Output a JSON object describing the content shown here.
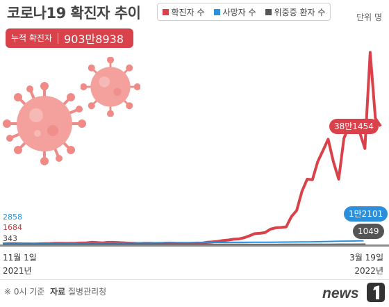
{
  "header": {
    "title": "코로나19 확진자 추이",
    "unit": "단위 명"
  },
  "legend": [
    {
      "label": "확진자 수",
      "color": "#d9424b"
    },
    {
      "label": "사망자 수",
      "color": "#2c8fdb"
    },
    {
      "label": "위중증 환자 수",
      "color": "#555555"
    }
  ],
  "total": {
    "label": "누적 확진자",
    "value": "903만8938"
  },
  "annotations": {
    "cases_end": "38만1454",
    "deaths_end": "1만2101",
    "critical_end": "1049",
    "deaths_start": "2858",
    "cases_start": "1684",
    "critical_start": "343"
  },
  "xaxis": {
    "start_day": "11월 1일",
    "start_year": "2021년",
    "end_day": "3월 19일",
    "end_year": "2022년"
  },
  "footer": {
    "note": "※ 0시 기준",
    "source_label": "자료",
    "source": "질병관리청",
    "logo": "news1"
  },
  "chart_data": {
    "type": "line",
    "x_start": "2021-11-01",
    "x_end": "2022-03-19",
    "ylim": [
      0,
      650000
    ],
    "series": [
      {
        "name": "확진자 수",
        "color": "#d9424b",
        "values": [
          1684,
          2500,
          2700,
          2300,
          2100,
          2000,
          1800,
          2200,
          3000,
          3200,
          3700,
          4000,
          3600,
          4100,
          4200,
          5000,
          5300,
          7100,
          6200,
          5100,
          7000,
          7000,
          6000,
          5300,
          4400,
          3800,
          3100,
          3900,
          3700,
          3300,
          3000,
          4400,
          4700,
          3900,
          3400,
          3300,
          3500,
          4800,
          4500,
          7500,
          8500,
          10000,
          13000,
          14500,
          17000,
          18000,
          22000,
          28000,
          35000,
          36000,
          38700,
          49500,
          53900,
          54900,
          57000,
          90400,
          109800,
          171400,
          210700,
          209100,
          266800,
          303000,
          339500,
          266800,
          210700,
          342400,
          383600,
          400700,
          362300,
          309700,
          620000,
          407000,
          381454
        ]
      },
      {
        "name": "사망자 수",
        "color": "#2c8fdb",
        "values": [
          2858,
          2900,
          3000,
          3100,
          3200,
          3300,
          3450,
          3600,
          3700,
          3850,
          4000,
          4150,
          4350,
          4500,
          4700,
          4900,
          5100,
          5300,
          5500,
          5700,
          5850,
          6000,
          6150,
          6250,
          6350,
          6450,
          6550,
          6650,
          6750,
          6850,
          6950,
          7050,
          7150,
          7300,
          7450,
          7600,
          7800,
          8000,
          8300,
          8600,
          9000,
          9500,
          10000,
          10500,
          11000,
          11500,
          12101
        ]
      },
      {
        "name": "위중증 환자 수",
        "color": "#555555",
        "values": [
          343,
          400,
          450,
          500,
          550,
          600,
          650,
          700,
          750,
          800,
          850,
          900,
          950,
          1000,
          1000,
          950,
          900,
          850,
          800,
          750,
          700,
          650,
          600,
          550,
          500,
          450,
          400,
          350,
          300,
          270,
          280,
          300,
          350,
          400,
          450,
          500,
          600,
          700,
          800,
          900,
          1000,
          1049
        ]
      }
    ]
  }
}
